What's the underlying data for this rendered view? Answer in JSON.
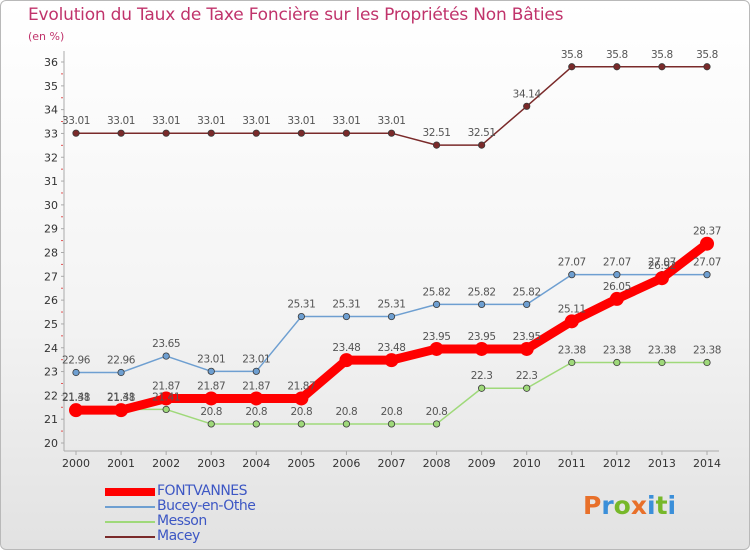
{
  "title": "Evolution du Taux de Taxe Foncière sur les Propriétés Non Bâties",
  "unit_label": "(en %)",
  "logo": {
    "letters": [
      "P",
      "r",
      "o",
      "x",
      "i",
      "t",
      "i"
    ],
    "colors": [
      "#e8702a",
      "#3b8fd9",
      "#77b82a",
      "#e8702a",
      "#3b8fd9",
      "#77b82a",
      "#3b8fd9"
    ]
  },
  "chart_data": {
    "type": "line",
    "title": "Evolution du Taux de Taxe Foncière sur les Propriétés Non Bâties",
    "ylabel": "(en %)",
    "xlabel": "",
    "x": [
      "2000",
      "2001",
      "2002",
      "2003",
      "2004",
      "2005",
      "2006",
      "2007",
      "2008",
      "2009",
      "2010",
      "2011",
      "2012",
      "2013",
      "2014"
    ],
    "ylim": [
      20,
      36
    ],
    "yticks": [
      "20",
      "21",
      "22",
      "23",
      "24",
      "25",
      "26",
      "27",
      "28",
      "29",
      "30",
      "31",
      "32",
      "33",
      "34",
      "35",
      "36"
    ],
    "grid": false,
    "legend_position": "bottom-left",
    "series": [
      {
        "name": "FONTVANNES",
        "color": "#ff0000",
        "values": [
          21.38,
          21.38,
          21.87,
          21.87,
          21.87,
          21.87,
          23.48,
          23.48,
          23.95,
          23.95,
          23.95,
          25.11,
          26.05,
          26.92,
          28.37
        ],
        "labels": [
          "21.38",
          "21.38",
          "21.87",
          "21.87",
          "21.87",
          "21.87",
          "23.48",
          "23.48",
          "23.95",
          "23.95",
          "23.95",
          "25.11",
          "26.05",
          "26.92",
          "28.37"
        ]
      },
      {
        "name": "Bucey-en-Othe",
        "color": "#6e9fd1",
        "values": [
          22.96,
          22.96,
          23.65,
          23.01,
          23.01,
          25.31,
          25.31,
          25.31,
          25.82,
          25.82,
          25.82,
          27.07,
          27.07,
          27.07,
          27.07
        ],
        "labels": [
          "22.96",
          "22.96",
          "23.65",
          "23.01",
          "23.01",
          "25.31",
          "25.31",
          "25.31",
          "25.82",
          "25.82",
          "25.82",
          "27.07",
          "27.07",
          "27.07",
          "27.07"
        ]
      },
      {
        "name": "Messon",
        "color": "#9fd97a",
        "values": [
          21.41,
          21.41,
          21.41,
          20.8,
          20.8,
          20.8,
          20.8,
          20.8,
          20.8,
          22.3,
          22.3,
          23.38,
          23.38,
          23.38,
          23.38
        ],
        "labels": [
          "21.41",
          "21.41",
          "21.41",
          "20.8",
          "20.8",
          "20.8",
          "20.8",
          "20.8",
          "20.8",
          "22.3",
          "22.3",
          "23.38",
          "23.38",
          "23.38",
          "23.38"
        ]
      },
      {
        "name": "Macey",
        "color": "#7a2a2a",
        "values": [
          33.01,
          33.01,
          33.01,
          33.01,
          33.01,
          33.01,
          33.01,
          33.01,
          32.51,
          32.51,
          34.14,
          35.8,
          35.8,
          35.8,
          35.8
        ],
        "labels": [
          "33.01",
          "33.01",
          "33.01",
          "33.01",
          "33.01",
          "33.01",
          "33.01",
          "33.01",
          "32.51",
          "32.51",
          "34.14",
          "35.8",
          "35.8",
          "35.8",
          "35.8"
        ]
      }
    ]
  }
}
